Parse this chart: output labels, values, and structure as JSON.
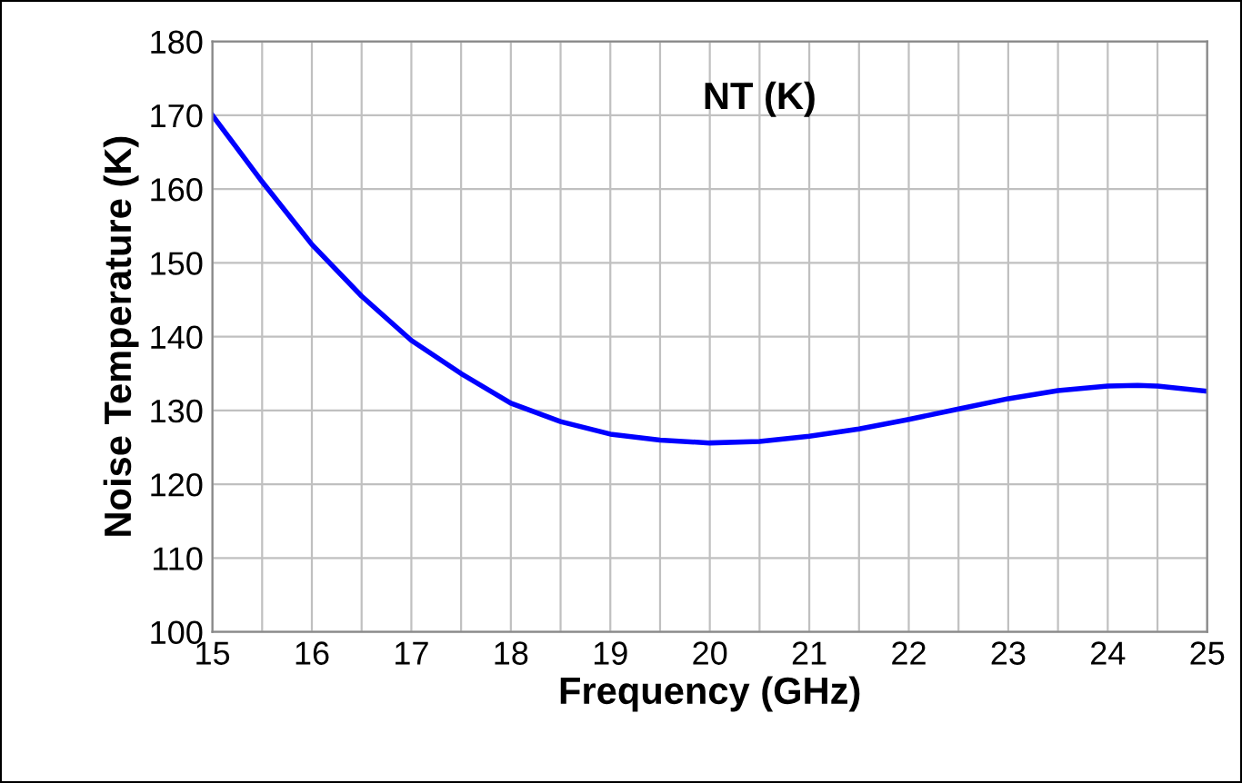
{
  "chart_data": {
    "type": "line",
    "title": "NT (K)",
    "xlabel": "Frequency (GHz)",
    "ylabel": "Noise Temperature (K)",
    "x": [
      15,
      15.5,
      16,
      16.5,
      17,
      17.5,
      18,
      18.5,
      19,
      19.5,
      20,
      20.5,
      21,
      21.5,
      22,
      22.5,
      23,
      23.5,
      24,
      24.3,
      24.5,
      25
    ],
    "series": [
      {
        "color": "#0000ff",
        "values": [
          170,
          161,
          152.5,
          145.5,
          139.5,
          135,
          131,
          128.5,
          126.8,
          126,
          125.6,
          125.8,
          126.5,
          127.5,
          128.8,
          130.2,
          131.6,
          132.7,
          133.3,
          133.4,
          133.3,
          132.6
        ]
      }
    ],
    "xlim": [
      15,
      25
    ],
    "ylim": [
      100,
      180
    ],
    "xticks": [
      15,
      {
        "value": 15.5,
        "label": null
      },
      16,
      {
        "value": 16.5,
        "label": null
      },
      17,
      {
        "value": 17.5,
        "label": null
      },
      18,
      {
        "value": 18.5,
        "label": null
      },
      19,
      {
        "value": 19.5,
        "label": null
      },
      20,
      {
        "value": 20.5,
        "label": null
      },
      21,
      {
        "value": 21.5,
        "label": null
      },
      22,
      {
        "value": 22.5,
        "label": null
      },
      23,
      {
        "value": 23.5,
        "label": null
      },
      24,
      {
        "value": 24.5,
        "label": null
      },
      25
    ],
    "yticks": [
      100,
      110,
      120,
      130,
      140,
      150,
      160,
      170,
      180
    ],
    "grid": true,
    "legend": false,
    "marker": "none",
    "line_style": "solid"
  }
}
